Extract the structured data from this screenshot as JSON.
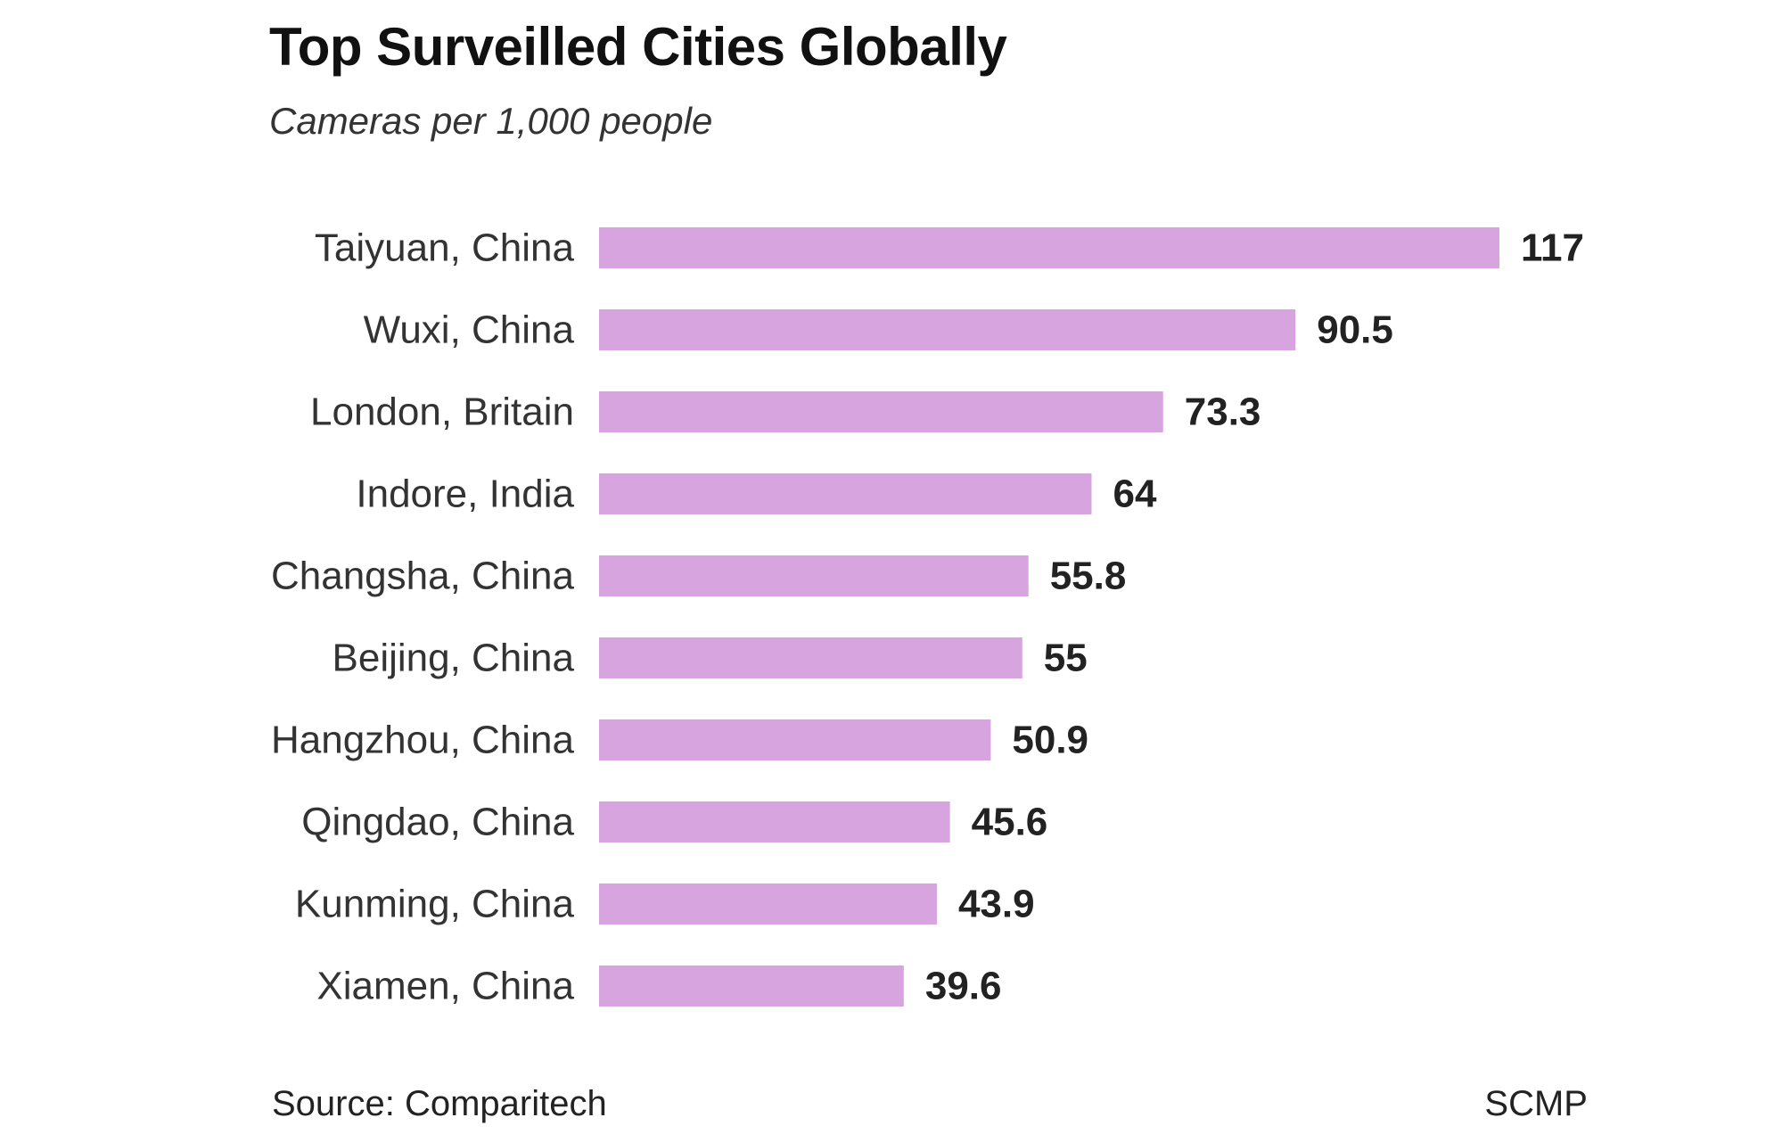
{
  "chart_data": {
    "type": "bar",
    "orientation": "horizontal",
    "title": "Top Surveilled Cities Globally",
    "subtitle": "Cameras per 1,000 people",
    "categories": [
      "Taiyuan, China",
      "Wuxi, China",
      "London, Britain",
      "Indore, India",
      "Changsha, China",
      "Beijing, China",
      "Hangzhou, China",
      "Qingdao, China",
      "Kunming, China",
      "Xiamen, China"
    ],
    "values": [
      117,
      90.5,
      73.3,
      64,
      55.8,
      55,
      50.9,
      45.6,
      43.9,
      39.6
    ],
    "value_labels": [
      "117",
      "90.5",
      "73.3",
      "64",
      "55.8",
      "55",
      "50.9",
      "45.6",
      "43.9",
      "39.6"
    ],
    "xlim": [
      0,
      117
    ],
    "grid": false,
    "legend": "none",
    "bar_color": "#d7a4e0"
  },
  "footer": {
    "source": "Source: Comparitech",
    "credit": "SCMP"
  }
}
